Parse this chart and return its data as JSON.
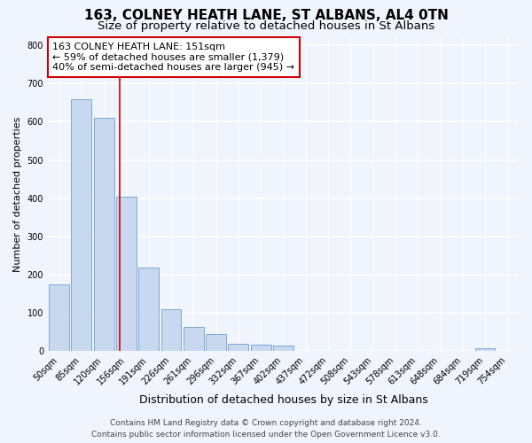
{
  "title1": "163, COLNEY HEATH LANE, ST ALBANS, AL4 0TN",
  "title2": "Size of property relative to detached houses in St Albans",
  "xlabel": "Distribution of detached houses by size in St Albans",
  "ylabel": "Number of detached properties",
  "footer1": "Contains HM Land Registry data © Crown copyright and database right 2024.",
  "footer2": "Contains public sector information licensed under the Open Government Licence v3.0.",
  "categories": [
    "50sqm",
    "85sqm",
    "120sqm",
    "156sqm",
    "191sqm",
    "226sqm",
    "261sqm",
    "296sqm",
    "332sqm",
    "367sqm",
    "402sqm",
    "437sqm",
    "472sqm",
    "508sqm",
    "543sqm",
    "578sqm",
    "613sqm",
    "648sqm",
    "684sqm",
    "719sqm",
    "754sqm"
  ],
  "values": [
    175,
    660,
    610,
    405,
    218,
    110,
    63,
    46,
    20,
    17,
    15,
    0,
    0,
    0,
    0,
    0,
    0,
    0,
    0,
    7,
    0
  ],
  "bar_color": "#c8d8ee",
  "bar_edge_color": "#7aaad4",
  "vline_color": "#cc0000",
  "vline_x": 2.7,
  "annotation_text": "163 COLNEY HEATH LANE: 151sqm\n← 59% of detached houses are smaller (1,379)\n40% of semi-detached houses are larger (945) →",
  "annotation_box_facecolor": "#ffffff",
  "annotation_box_edgecolor": "#cc0000",
  "ylim": [
    0,
    820
  ],
  "yticks": [
    0,
    100,
    200,
    300,
    400,
    500,
    600,
    700,
    800
  ],
  "bg_color": "#f0f4fc",
  "plot_bg_color": "#f0f4fc",
  "grid_color": "#ffffff",
  "title1_fontsize": 11,
  "title2_fontsize": 9.5,
  "tick_fontsize": 7,
  "ylabel_fontsize": 8,
  "xlabel_fontsize": 9,
  "annot_fontsize": 8,
  "footer_fontsize": 6.5
}
